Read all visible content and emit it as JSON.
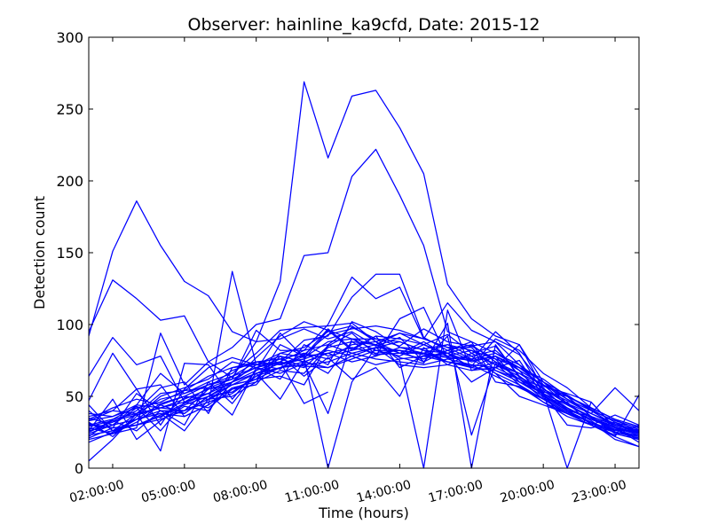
{
  "chart_data": {
    "type": "line",
    "title": "Observer: hainline_ka9cfd, Date: 2015-12",
    "xlabel": "Time (hours)",
    "ylabel": "Detection count",
    "xlim": [
      1,
      24
    ],
    "ylim": [
      0,
      300
    ],
    "grid": false,
    "line_color": "#0000ff",
    "x_ticks": [
      {
        "x": 2,
        "label": "02:00:00"
      },
      {
        "x": 5,
        "label": "05:00:00"
      },
      {
        "x": 8,
        "label": "08:00:00"
      },
      {
        "x": 11,
        "label": "11:00:00"
      },
      {
        "x": 14,
        "label": "14:00:00"
      },
      {
        "x": 17,
        "label": "17:00:00"
      },
      {
        "x": 20,
        "label": "20:00:00"
      },
      {
        "x": 23,
        "label": "23:00:00"
      }
    ],
    "y_ticks": [
      0,
      50,
      100,
      150,
      200,
      250,
      300
    ],
    "x": [
      1,
      2,
      3,
      4,
      5,
      6,
      7,
      8,
      9,
      10,
      11,
      12,
      13,
      14,
      15,
      16,
      17,
      18,
      19,
      20,
      21,
      22,
      23,
      24
    ],
    "series": [
      {
        "values": [
          92,
          151,
          186,
          155,
          130,
          120,
          95,
          88,
          130,
          269,
          216,
          259,
          263,
          237,
          205,
          128,
          104,
          92,
          86,
          60,
          48,
          38,
          30,
          26
        ]
      },
      {
        "values": [
          95,
          131,
          118,
          103,
          106,
          74,
          84,
          100,
          104,
          148,
          150,
          203,
          222,
          190,
          155,
          95,
          88,
          80,
          72,
          55,
          45,
          35,
          28,
          24
        ]
      },
      {
        "values": [
          64,
          91,
          72,
          78,
          46,
          56,
          62,
          96,
          82,
          82,
          100,
          133,
          118,
          126,
          90,
          115,
          96,
          88,
          79,
          58,
          50,
          41,
          32,
          27
        ]
      },
      {
        "values": [
          47,
          80,
          55,
          58,
          36,
          44,
          137,
          72,
          74,
          89,
          92,
          119,
          135,
          135,
          91,
          82,
          75,
          95,
          80,
          52,
          41,
          34,
          27,
          22
        ]
      },
      {
        "values": [
          38,
          36,
          44,
          66,
          52,
          60,
          66,
          80,
          96,
          98,
          99,
          101,
          88,
          75,
          0,
          110,
          68,
          70,
          86,
          55,
          45,
          38,
          56,
          40
        ]
      },
      {
        "values": [
          33,
          40,
          55,
          30,
          55,
          70,
          77,
          72,
          80,
          84,
          95,
          99,
          88,
          94,
          86,
          80,
          74,
          78,
          60,
          53,
          0,
          46,
          28,
          18
        ]
      },
      {
        "values": [
          28,
          24,
          28,
          94,
          58,
          74,
          63,
          88,
          90,
          97,
          90,
          95,
          85,
          91,
          74,
          92,
          23,
          73,
          58,
          46,
          36,
          30,
          22,
          51
        ]
      },
      {
        "values": [
          26,
          48,
          20,
          33,
          43,
          40,
          60,
          77,
          92,
          102,
          96,
          82,
          86,
          80,
          80,
          74,
          71,
          90,
          82,
          66,
          56,
          42,
          34,
          25
        ]
      },
      {
        "values": [
          31,
          28,
          30,
          37,
          45,
          52,
          37,
          70,
          66,
          73,
          38,
          90,
          86,
          77,
          73,
          101,
          0,
          86,
          63,
          56,
          40,
          32,
          25,
          22
        ]
      },
      {
        "values": [
          22,
          34,
          43,
          35,
          49,
          52,
          64,
          74,
          72,
          79,
          93,
          97,
          99,
          96,
          90,
          84,
          84,
          68,
          62,
          48,
          46,
          30,
          37,
          30
        ]
      },
      {
        "values": [
          40,
          26,
          38,
          12,
          73,
          72,
          48,
          68,
          94,
          77,
          0,
          60,
          84,
          72,
          70,
          72,
          80,
          85,
          64,
          53,
          50,
          36,
          24,
          20
        ]
      },
      {
        "values": [
          20,
          24,
          32,
          44,
          38,
          50,
          53,
          64,
          74,
          70,
          85,
          94,
          79,
          80,
          88,
          78,
          60,
          70,
          75,
          50,
          42,
          33,
          22,
          15
        ]
      },
      {
        "values": [
          35,
          30,
          42,
          26,
          46,
          42,
          55,
          58,
          78,
          64,
          77,
          62,
          70,
          50,
          84,
          72,
          68,
          74,
          62,
          52,
          30,
          28,
          32,
          24
        ]
      },
      {
        "values": [
          25,
          33,
          26,
          40,
          30,
          60,
          45,
          66,
          48,
          75,
          66,
          88,
          78,
          104,
          112,
          76,
          78,
          66,
          50,
          44,
          38,
          32,
          20,
          15
        ]
      },
      {
        "values": [
          30,
          28,
          52,
          40,
          40,
          55,
          58,
          62,
          80,
          77,
          88,
          90,
          82,
          82,
          74,
          82,
          88,
          60,
          57,
          46,
          38,
          30,
          23,
          30
        ]
      },
      {
        "values": [
          44,
          26,
          34,
          45,
          50,
          48,
          50,
          60,
          86,
          78,
          97,
          83,
          92,
          70,
          78,
          80,
          85,
          88,
          72,
          60,
          45,
          35,
          26,
          27
        ]
      },
      {
        "values": [
          27,
          32,
          40,
          56,
          60,
          38,
          70,
          72,
          69,
          80,
          72,
          102,
          95,
          84,
          83,
          86,
          78,
          82,
          68,
          49,
          39,
          32,
          26,
          29
        ]
      },
      {
        "values": [
          18,
          25,
          34,
          38,
          26,
          48,
          55,
          62,
          64,
          58,
          86,
          98,
          90,
          85,
          97,
          88,
          85,
          76,
          70,
          57,
          52,
          46,
          28,
          25
        ]
      },
      {
        "values": [
          32,
          22,
          36,
          50,
          56,
          62,
          74,
          70,
          62,
          86,
          78,
          82,
          92,
          90,
          86,
          93,
          80,
          72,
          64,
          51,
          40,
          31,
          27,
          20
        ]
      },
      {
        "values": [
          24,
          30,
          44,
          42,
          48,
          55,
          60,
          72,
          78,
          74,
          80,
          84,
          80,
          82,
          79,
          77,
          75,
          78,
          68,
          58,
          44,
          35,
          29,
          24
        ]
      },
      {
        "values": [
          36,
          40,
          38,
          48,
          52,
          58,
          62,
          70,
          76,
          80,
          76,
          86,
          88,
          80,
          76,
          82,
          86,
          74,
          66,
          55,
          47,
          38,
          31,
          26
        ]
      },
      {
        "values": [
          21,
          28,
          30,
          36,
          44,
          50,
          60,
          66,
          73,
          76,
          82,
          78,
          84,
          88,
          82,
          80,
          70,
          78,
          70,
          60,
          51,
          40,
          33,
          28
        ]
      },
      {
        "values": [
          29,
          33,
          37,
          42,
          40,
          46,
          52,
          64,
          70,
          72,
          74,
          80,
          76,
          74,
          72,
          76,
          72,
          70,
          62,
          54,
          42,
          34,
          28,
          23
        ]
      },
      {
        "values": [
          33,
          36,
          42,
          46,
          54,
          56,
          68,
          74,
          76,
          71,
          70,
          76,
          82,
          78,
          86,
          78,
          82,
          76,
          60,
          52,
          44,
          36,
          30,
          26
        ]
      },
      {
        "values": [
          26,
          30,
          34,
          38,
          36,
          44,
          56,
          60,
          68,
          66,
          84,
          88,
          86,
          94,
          90,
          84,
          76,
          66,
          58,
          48,
          38,
          30,
          25,
          21
        ]
      },
      {
        "values": [
          23,
          26,
          30,
          34,
          40,
          48,
          58,
          66,
          70,
          78,
          80,
          74,
          78,
          84,
          80,
          86,
          82,
          72,
          66,
          58,
          48,
          40,
          30,
          25
        ]
      },
      {
        "values": [
          30,
          34,
          38,
          42,
          46,
          52,
          60,
          68,
          74,
          45,
          53,
          null,
          null,
          null,
          null,
          null,
          null,
          null,
          null,
          null,
          null,
          null,
          null,
          null
        ]
      },
      {
        "values": [
          5,
          20,
          38,
          52,
          54,
          64,
          70,
          74,
          72,
          76,
          96,
          90,
          90,
          88,
          82,
          74,
          72,
          64,
          56,
          48,
          38,
          32,
          25,
          23
        ]
      },
      {
        "values": [
          34,
          42,
          48,
          44,
          50,
          58,
          64,
          70,
          74,
          82,
          86,
          80,
          84,
          82,
          80,
          78,
          76,
          80,
          70,
          62,
          50,
          42,
          34,
          29
        ]
      },
      {
        "values": [
          28,
          24,
          34,
          40,
          38,
          50,
          58,
          62,
          70,
          74,
          70,
          78,
          72,
          76,
          78,
          74,
          70,
          68,
          60,
          50,
          40,
          36,
          30,
          26
        ]
      }
    ]
  }
}
